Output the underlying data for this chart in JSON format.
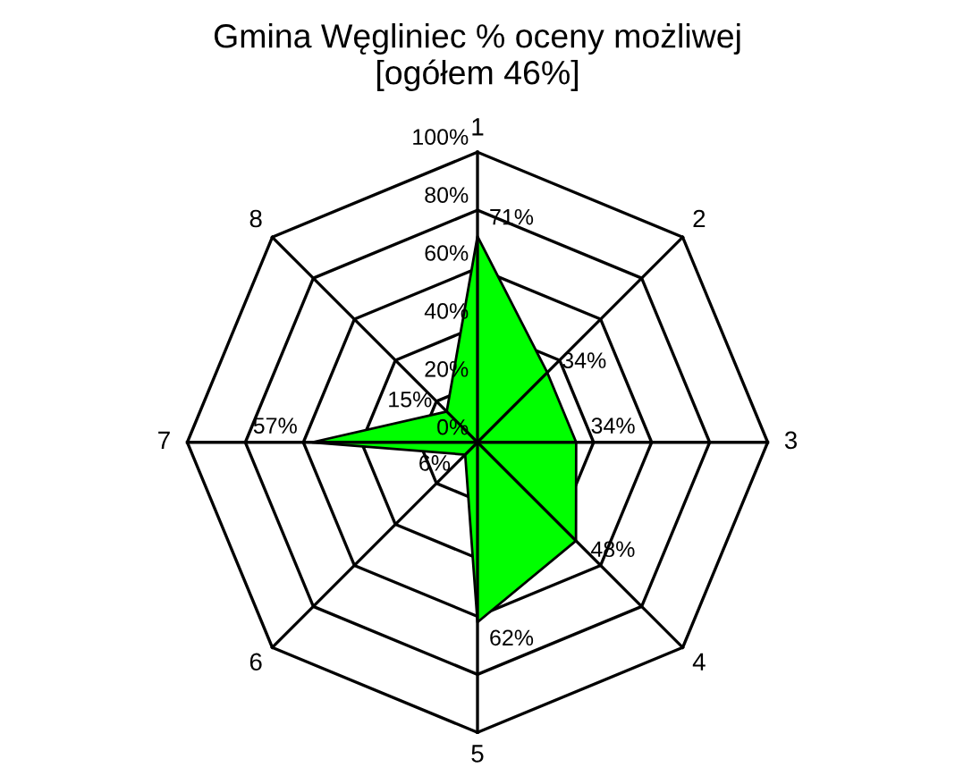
{
  "chart_data": {
    "type": "radar",
    "title": "Gmina Węgliniec % oceny możliwej\n[ogółem 46%]",
    "categories": [
      "1",
      "2",
      "3",
      "4",
      "5",
      "6",
      "7",
      "8"
    ],
    "series": [
      {
        "color": "#00ff00",
        "values": [
          71,
          34,
          34,
          48,
          62,
          6,
          57,
          15
        ],
        "value_labels": [
          "71%",
          "34%",
          "34%",
          "48%",
          "62%",
          "6%",
          "57%",
          "15%"
        ]
      }
    ],
    "ylim": [
      0,
      100
    ],
    "yticks": [
      {
        "value": 0,
        "label": "0%"
      },
      {
        "value": 20,
        "label": "20%"
      },
      {
        "value": 40,
        "label": "40%"
      },
      {
        "value": 60,
        "label": "60%"
      },
      {
        "value": 80,
        "label": "80%"
      },
      {
        "value": 100,
        "label": "100%"
      }
    ],
    "grid": true,
    "legend": false
  }
}
